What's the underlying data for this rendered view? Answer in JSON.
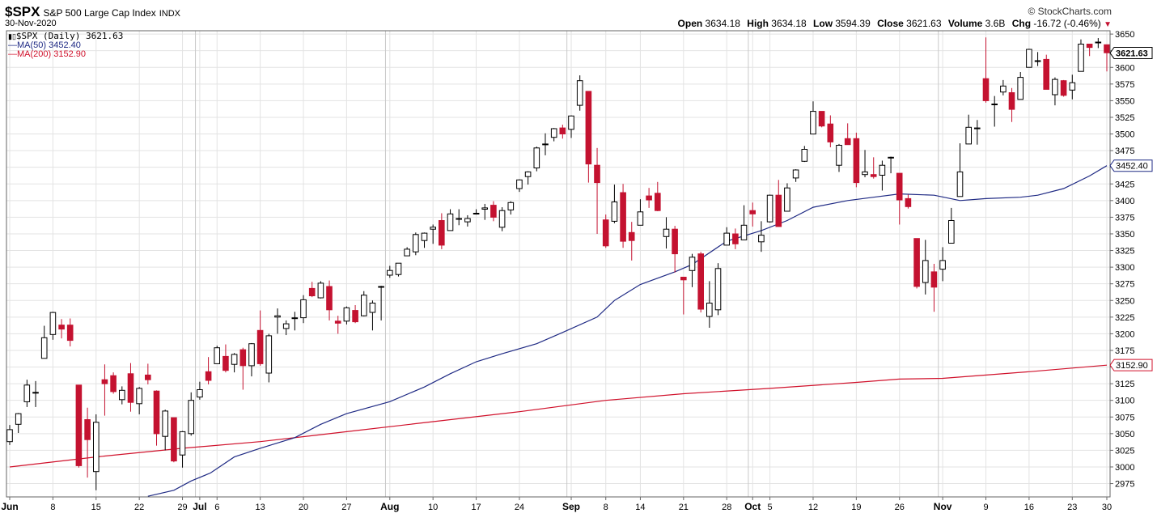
{
  "header": {
    "symbol": "$SPX",
    "name": "S&P 500 Large Cap Index",
    "exchange": "INDX",
    "date": "30-Nov-2020",
    "brand": "© StockCharts.com",
    "open_label": "Open",
    "open": "3634.18",
    "high_label": "High",
    "high": "3634.18",
    "low_label": "Low",
    "low": "3594.39",
    "close_label": "Close",
    "close": "3621.63",
    "volume_label": "Volume",
    "volume": "3.6B",
    "chg_label": "Chg",
    "chg": "-16.72 (-0.46%)"
  },
  "legend": {
    "price": "$SPX (Daily) 3621.63",
    "ma50": "MA(50) 3452.40",
    "ma200": "MA(200) 3152.90"
  },
  "tags": {
    "last": "3621.63",
    "ma50": "3452.40",
    "ma200": "3152.90"
  },
  "colors": {
    "up": "#ffffff",
    "down": "#c41230",
    "ma50": "#1f2a84",
    "ma200": "#d0112b",
    "grid": "#e3e3e3",
    "sep": "#c8c8c8"
  },
  "chart_data": {
    "type": "candlestick",
    "ylim": [
      2955,
      3655
    ],
    "y_ticks": [
      2975,
      3000,
      3025,
      3050,
      3075,
      3100,
      3125,
      3150,
      3175,
      3200,
      3225,
      3250,
      3275,
      3300,
      3325,
      3350,
      3375,
      3400,
      3425,
      3450,
      3475,
      3500,
      3525,
      3550,
      3575,
      3600,
      3625,
      3650
    ],
    "x_ticks": [
      {
        "label": "Jun",
        "date": "2020-06-01",
        "bold": true
      },
      {
        "label": "8",
        "date": "2020-06-08"
      },
      {
        "label": "15",
        "date": "2020-06-15"
      },
      {
        "label": "22",
        "date": "2020-06-22"
      },
      {
        "label": "29",
        "date": "2020-06-29"
      },
      {
        "label": "Jul",
        "date": "2020-07-01",
        "bold": true
      },
      {
        "label": "6",
        "date": "2020-07-06"
      },
      {
        "label": "13",
        "date": "2020-07-13"
      },
      {
        "label": "20",
        "date": "2020-07-20"
      },
      {
        "label": "27",
        "date": "2020-07-27"
      },
      {
        "label": "Aug",
        "date": "2020-08-03",
        "bold": true
      },
      {
        "label": "10",
        "date": "2020-08-10"
      },
      {
        "label": "17",
        "date": "2020-08-17"
      },
      {
        "label": "24",
        "date": "2020-08-24"
      },
      {
        "label": "Sep",
        "date": "2020-09-01",
        "bold": true
      },
      {
        "label": "8",
        "date": "2020-09-08"
      },
      {
        "label": "14",
        "date": "2020-09-14"
      },
      {
        "label": "21",
        "date": "2020-09-21"
      },
      {
        "label": "28",
        "date": "2020-09-28"
      },
      {
        "label": "Oct",
        "date": "2020-10-01",
        "bold": true
      },
      {
        "label": "5",
        "date": "2020-10-05"
      },
      {
        "label": "12",
        "date": "2020-10-12"
      },
      {
        "label": "19",
        "date": "2020-10-19"
      },
      {
        "label": "26",
        "date": "2020-10-26"
      },
      {
        "label": "Nov",
        "date": "2020-11-02",
        "bold": true
      },
      {
        "label": "9",
        "date": "2020-11-09"
      },
      {
        "label": "16",
        "date": "2020-11-16"
      },
      {
        "label": "23",
        "date": "2020-11-23"
      },
      {
        "label": "30",
        "date": "2020-11-30"
      }
    ],
    "month_separators": [
      "2020-07-01",
      "2020-08-03",
      "2020-09-01",
      "2020-10-01",
      "2020-11-02"
    ],
    "candles": [
      [
        "2020-06-01",
        3038,
        3063,
        3033,
        3056
      ],
      [
        "2020-06-02",
        3064,
        3081,
        3051,
        3080
      ],
      [
        "2020-06-03",
        3098,
        3131,
        3090,
        3123
      ],
      [
        "2020-06-04",
        3111,
        3129,
        3090,
        3112
      ],
      [
        "2020-06-05",
        3163,
        3212,
        3163,
        3194
      ],
      [
        "2020-06-08",
        3199,
        3233,
        3191,
        3232
      ],
      [
        "2020-06-09",
        3213,
        3222,
        3193,
        3207
      ],
      [
        "2020-06-10",
        3213,
        3223,
        3181,
        3190
      ],
      [
        "2020-06-11",
        3123,
        3123,
        2999,
        3002
      ],
      [
        "2020-06-12",
        3071,
        3089,
        2984,
        3041
      ],
      [
        "2020-06-15",
        2993,
        3079,
        2965,
        3067
      ],
      [
        "2020-06-16",
        3131,
        3154,
        3077,
        3125
      ],
      [
        "2020-06-17",
        3137,
        3142,
        3110,
        3113
      ],
      [
        "2020-06-18",
        3101,
        3121,
        3094,
        3115
      ],
      [
        "2020-06-19",
        3140,
        3156,
        3083,
        3097
      ],
      [
        "2020-06-22",
        3095,
        3120,
        3079,
        3118
      ],
      [
        "2020-06-23",
        3138,
        3155,
        3124,
        3131
      ],
      [
        "2020-06-24",
        3114,
        3115,
        3032,
        3050
      ],
      [
        "2020-06-25",
        3046,
        3086,
        3025,
        3084
      ],
      [
        "2020-06-26",
        3074,
        3074,
        3007,
        3009
      ],
      [
        "2020-06-29",
        3018,
        3054,
        2999,
        3053
      ],
      [
        "2020-06-30",
        3050,
        3112,
        3047,
        3100
      ],
      [
        "2020-07-01",
        3105,
        3128,
        3101,
        3116
      ],
      [
        "2020-07-02",
        3143,
        3165,
        3124,
        3130
      ],
      [
        "2020-07-06",
        3155,
        3182,
        3155,
        3179
      ],
      [
        "2020-07-07",
        3166,
        3184,
        3142,
        3145
      ],
      [
        "2020-07-08",
        3154,
        3171,
        3142,
        3169
      ],
      [
        "2020-07-09",
        3176,
        3179,
        3116,
        3152
      ],
      [
        "2020-07-10",
        3152,
        3186,
        3136,
        3185
      ],
      [
        "2020-07-13",
        3205,
        3235,
        3152,
        3155
      ],
      [
        "2020-07-14",
        3141,
        3200,
        3127,
        3197
      ],
      [
        "2020-07-15",
        3225,
        3238,
        3200,
        3227
      ],
      [
        "2020-07-16",
        3208,
        3220,
        3198,
        3215
      ],
      [
        "2020-07-17",
        3224,
        3233,
        3205,
        3224
      ],
      [
        "2020-07-20",
        3224,
        3258,
        3216,
        3251
      ],
      [
        "2020-07-21",
        3268,
        3278,
        3255,
        3257
      ],
      [
        "2020-07-22",
        3254,
        3279,
        3253,
        3276
      ],
      [
        "2020-07-23",
        3271,
        3280,
        3220,
        3236
      ],
      [
        "2020-07-24",
        3219,
        3227,
        3200,
        3216
      ],
      [
        "2020-07-27",
        3219,
        3241,
        3214,
        3239
      ],
      [
        "2020-07-28",
        3235,
        3243,
        3216,
        3218
      ],
      [
        "2020-07-29",
        3227,
        3264,
        3226,
        3258
      ],
      [
        "2020-07-30",
        3232,
        3250,
        3205,
        3246
      ],
      [
        "2020-07-31",
        3270,
        3272,
        3220,
        3271
      ],
      [
        "2020-08-03",
        3288,
        3302,
        3284,
        3295
      ],
      [
        "2020-08-04",
        3289,
        3306,
        3286,
        3306
      ],
      [
        "2020-08-05",
        3317,
        3330,
        3317,
        3327
      ],
      [
        "2020-08-06",
        3323,
        3352,
        3318,
        3349
      ],
      [
        "2020-08-07",
        3340,
        3352,
        3329,
        3351
      ],
      [
        "2020-08-10",
        3357,
        3364,
        3335,
        3360
      ],
      [
        "2020-08-11",
        3370,
        3381,
        3327,
        3333
      ],
      [
        "2020-08-12",
        3355,
        3387,
        3355,
        3380
      ],
      [
        "2020-08-13",
        3372,
        3387,
        3363,
        3373
      ],
      [
        "2020-08-14",
        3368,
        3378,
        3361,
        3373
      ],
      [
        "2020-08-17",
        3380,
        3387,
        3379,
        3381
      ],
      [
        "2020-08-18",
        3387,
        3395,
        3371,
        3389
      ],
      [
        "2020-08-19",
        3393,
        3399,
        3369,
        3375
      ],
      [
        "2020-08-20",
        3360,
        3390,
        3354,
        3385
      ],
      [
        "2020-08-21",
        3386,
        3399,
        3379,
        3397
      ],
      [
        "2020-08-24",
        3418,
        3432,
        3413,
        3431
      ],
      [
        "2020-08-25",
        3436,
        3444,
        3424,
        3443
      ],
      [
        "2020-08-26",
        3449,
        3481,
        3444,
        3479
      ],
      [
        "2020-08-27",
        3485,
        3501,
        3468,
        3485
      ],
      [
        "2020-08-28",
        3495,
        3509,
        3489,
        3508
      ],
      [
        "2020-08-31",
        3509,
        3514,
        3493,
        3500
      ],
      [
        "2020-09-01",
        3507,
        3528,
        3494,
        3527
      ],
      [
        "2020-09-02",
        3543,
        3588,
        3535,
        3580
      ],
      [
        "2020-09-03",
        3564,
        3564,
        3427,
        3455
      ],
      [
        "2020-09-04",
        3453,
        3479,
        3350,
        3427
      ],
      [
        "2020-09-08",
        3371,
        3379,
        3329,
        3332
      ],
      [
        "2020-09-09",
        3369,
        3424,
        3366,
        3398
      ],
      [
        "2020-09-10",
        3412,
        3425,
        3329,
        3339
      ],
      [
        "2020-09-11",
        3352,
        3368,
        3310,
        3340
      ],
      [
        "2020-09-14",
        3363,
        3402,
        3363,
        3383
      ],
      [
        "2020-09-15",
        3407,
        3419,
        3389,
        3401
      ],
      [
        "2020-09-16",
        3411,
        3428,
        3384,
        3385
      ],
      [
        "2020-09-17",
        3346,
        3375,
        3328,
        3357
      ],
      [
        "2020-09-18",
        3357,
        3362,
        3292,
        3320
      ],
      [
        "2020-09-21",
        3285,
        3285,
        3229,
        3281
      ],
      [
        "2020-09-22",
        3295,
        3320,
        3270,
        3315
      ],
      [
        "2020-09-23",
        3320,
        3323,
        3232,
        3237
      ],
      [
        "2020-09-24",
        3226,
        3279,
        3209,
        3246
      ],
      [
        "2020-09-25",
        3236,
        3306,
        3228,
        3298
      ],
      [
        "2020-09-28",
        3333,
        3360,
        3333,
        3351
      ],
      [
        "2020-09-29",
        3350,
        3358,
        3327,
        3335
      ],
      [
        "2020-09-30",
        3341,
        3393,
        3341,
        3363
      ],
      [
        "2020-10-01",
        3385,
        3397,
        3361,
        3380
      ],
      [
        "2020-10-02",
        3338,
        3369,
        3323,
        3348
      ],
      [
        "2020-10-05",
        3368,
        3409,
        3367,
        3408
      ],
      [
        "2020-10-06",
        3408,
        3431,
        3361,
        3361
      ],
      [
        "2020-10-07",
        3384,
        3426,
        3384,
        3419
      ],
      [
        "2020-10-08",
        3434,
        3447,
        3428,
        3446
      ],
      [
        "2020-10-09",
        3459,
        3482,
        3458,
        3477
      ],
      [
        "2020-10-12",
        3500,
        3549,
        3500,
        3534
      ],
      [
        "2020-10-13",
        3534,
        3534,
        3510,
        3512
      ],
      [
        "2020-10-14",
        3515,
        3528,
        3480,
        3488
      ],
      [
        "2020-10-15",
        3453,
        3485,
        3443,
        3483
      ],
      [
        "2020-10-16",
        3493,
        3516,
        3484,
        3484
      ],
      [
        "2020-10-19",
        3493,
        3502,
        3420,
        3427
      ],
      [
        "2020-10-20",
        3439,
        3476,
        3435,
        3443
      ],
      [
        "2020-10-21",
        3439,
        3465,
        3433,
        3436
      ],
      [
        "2020-10-22",
        3438,
        3460,
        3415,
        3453
      ],
      [
        "2020-10-23",
        3464,
        3466,
        3441,
        3465
      ],
      [
        "2020-10-26",
        3441,
        3441,
        3364,
        3401
      ],
      [
        "2020-10-27",
        3403,
        3409,
        3388,
        3391
      ],
      [
        "2020-10-28",
        3343,
        3343,
        3268,
        3271
      ],
      [
        "2020-10-29",
        3277,
        3341,
        3259,
        3310
      ],
      [
        "2020-10-30",
        3293,
        3305,
        3233,
        3270
      ],
      [
        "2020-11-02",
        3297,
        3330,
        3279,
        3310
      ],
      [
        "2020-11-03",
        3336,
        3389,
        3336,
        3370
      ],
      [
        "2020-11-04",
        3406,
        3486,
        3406,
        3443
      ],
      [
        "2020-11-05",
        3485,
        3529,
        3485,
        3510
      ],
      [
        "2020-11-06",
        3508,
        3521,
        3484,
        3509
      ],
      [
        "2020-11-09",
        3583,
        3645,
        3547,
        3550
      ],
      [
        "2020-11-10",
        3544,
        3557,
        3511,
        3545
      ],
      [
        "2020-11-11",
        3563,
        3581,
        3558,
        3572
      ],
      [
        "2020-11-12",
        3562,
        3569,
        3518,
        3537
      ],
      [
        "2020-11-13",
        3552,
        3593,
        3552,
        3585
      ],
      [
        "2020-11-16",
        3600,
        3628,
        3600,
        3627
      ],
      [
        "2020-11-17",
        3610,
        3623,
        3602,
        3610
      ],
      [
        "2020-11-18",
        3612,
        3619,
        3567,
        3567
      ],
      [
        "2020-11-19",
        3559,
        3585,
        3543,
        3582
      ],
      [
        "2020-11-20",
        3580,
        3581,
        3556,
        3558
      ],
      [
        "2020-11-23",
        3566,
        3589,
        3552,
        3577
      ],
      [
        "2020-11-24",
        3594,
        3642,
        3594,
        3635
      ],
      [
        "2020-11-25",
        3635,
        3635,
        3617,
        3630
      ],
      [
        "2020-11-27",
        3638,
        3644,
        3629,
        3638
      ],
      [
        "2020-11-30",
        3634,
        3634,
        3594,
        3622
      ]
    ],
    "ma50": [
      [
        "2020-06-23",
        2956
      ],
      [
        "2020-06-26",
        2965
      ],
      [
        "2020-06-30",
        2979
      ],
      [
        "2020-07-03",
        2991
      ],
      [
        "2020-07-08",
        3015
      ],
      [
        "2020-07-13",
        3028
      ],
      [
        "2020-07-17",
        3044
      ],
      [
        "2020-07-22",
        3064
      ],
      [
        "2020-07-27",
        3080
      ],
      [
        "2020-08-03",
        3098
      ],
      [
        "2020-08-07",
        3120
      ],
      [
        "2020-08-12",
        3140
      ],
      [
        "2020-08-17",
        3158
      ],
      [
        "2020-08-20",
        3170
      ],
      [
        "2020-08-26",
        3185
      ],
      [
        "2020-08-31",
        3202
      ],
      [
        "2020-09-04",
        3225
      ],
      [
        "2020-09-09",
        3250
      ],
      [
        "2020-09-14",
        3274
      ],
      [
        "2020-09-18",
        3293
      ],
      [
        "2020-09-22",
        3304
      ],
      [
        "2020-09-28",
        3339
      ],
      [
        "2020-10-02",
        3355
      ],
      [
        "2020-10-07",
        3370
      ],
      [
        "2020-10-12",
        3390
      ],
      [
        "2020-10-16",
        3400
      ],
      [
        "2020-10-21",
        3405
      ],
      [
        "2020-10-26",
        3410
      ],
      [
        "2020-10-30",
        3408
      ],
      [
        "2020-11-04",
        3400
      ],
      [
        "2020-11-09",
        3403
      ],
      [
        "2020-11-13",
        3405
      ],
      [
        "2020-11-17",
        3408
      ],
      [
        "2020-11-20",
        3418
      ],
      [
        "2020-11-25",
        3437
      ],
      [
        "2020-11-30",
        3452.4
      ]
    ],
    "ma200": [
      [
        "2020-06-01",
        3000
      ],
      [
        "2020-06-15",
        3015
      ],
      [
        "2020-06-29",
        3028
      ],
      [
        "2020-07-13",
        3038
      ],
      [
        "2020-07-27",
        3053
      ],
      [
        "2020-08-10",
        3068
      ],
      [
        "2020-08-24",
        3083
      ],
      [
        "2020-09-08",
        3100
      ],
      [
        "2020-09-21",
        3110
      ],
      [
        "2020-10-05",
        3118
      ],
      [
        "2020-10-19",
        3127
      ],
      [
        "2020-10-26",
        3132
      ],
      [
        "2020-11-02",
        3133
      ],
      [
        "2020-11-16",
        3143
      ],
      [
        "2020-11-30",
        3152.9
      ]
    ]
  }
}
